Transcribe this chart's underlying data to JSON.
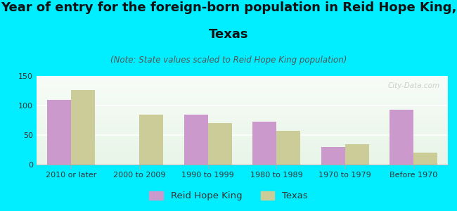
{
  "title_line1": "Year of entry for the foreign-born population in Reid Hope King,",
  "title_line2": "Texas",
  "subtitle": "(Note: State values scaled to Reid Hope King population)",
  "categories": [
    "2010 or later",
    "2000 to 2009",
    "1990 to 1999",
    "1980 to 1989",
    "1970 to 1979",
    "Before 1970"
  ],
  "reid_hope_king": [
    110,
    0,
    85,
    73,
    30,
    93
  ],
  "texas": [
    126,
    85,
    70,
    57,
    34,
    20
  ],
  "reid_color": "#cc99cc",
  "texas_color": "#cccc99",
  "background_color": "#00eeff",
  "ylim": [
    0,
    150
  ],
  "yticks": [
    0,
    50,
    100,
    150
  ],
  "bar_width": 0.35,
  "legend_labels": [
    "Reid Hope King",
    "Texas"
  ],
  "watermark": "City-Data.com",
  "title_fontsize": 13,
  "subtitle_fontsize": 8.5,
  "tick_fontsize": 8,
  "legend_fontsize": 9.5
}
